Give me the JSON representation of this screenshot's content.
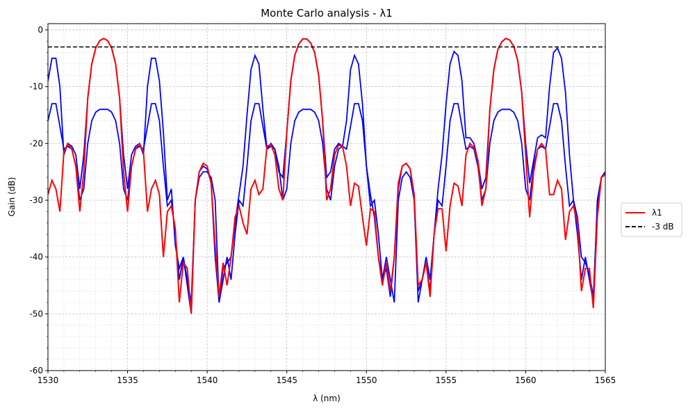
{
  "chart_data": {
    "type": "line",
    "title": "Monte Carlo analysis - λ1",
    "xlabel": "λ (nm)",
    "ylabel": "Gain (dB)",
    "x": [
      1530,
      1530.25,
      1530.5,
      1530.75,
      1531,
      1531.25,
      1531.5,
      1531.75,
      1532,
      1532.25,
      1532.5,
      1532.75,
      1533,
      1533.25,
      1533.5,
      1533.75,
      1534,
      1534.25,
      1534.5,
      1534.75,
      1535,
      1535.25,
      1535.5,
      1535.75,
      1536,
      1536.25,
      1536.5,
      1536.75,
      1537,
      1537.25,
      1537.5,
      1537.75,
      1538,
      1538.25,
      1538.5,
      1538.75,
      1539,
      1539.25,
      1539.5,
      1539.75,
      1540,
      1540.25,
      1540.5,
      1540.75,
      1541,
      1541.25,
      1541.5,
      1541.75,
      1542,
      1542.25,
      1542.5,
      1542.75,
      1543,
      1543.25,
      1543.5,
      1543.75,
      1544,
      1544.25,
      1544.5,
      1544.75,
      1545,
      1545.25,
      1545.5,
      1545.75,
      1546,
      1546.25,
      1546.5,
      1546.75,
      1547,
      1547.25,
      1547.5,
      1547.75,
      1548,
      1548.25,
      1548.5,
      1548.75,
      1549,
      1549.25,
      1549.5,
      1549.75,
      1550,
      1550.25,
      1550.5,
      1550.75,
      1551,
      1551.25,
      1551.5,
      1551.75,
      1552,
      1552.25,
      1552.5,
      1552.75,
      1553,
      1553.25,
      1553.5,
      1553.75,
      1554,
      1554.25,
      1554.5,
      1554.75,
      1555,
      1555.25,
      1555.5,
      1555.75,
      1556,
      1556.25,
      1556.5,
      1556.75,
      1557,
      1557.25,
      1557.5,
      1557.75,
      1558,
      1558.25,
      1558.5,
      1558.75,
      1559,
      1559.25,
      1559.5,
      1559.75,
      1560,
      1560.25,
      1560.5,
      1560.75,
      1561,
      1561.25,
      1561.5,
      1561.75,
      1562,
      1562.25,
      1562.5,
      1562.75,
      1563,
      1563.25,
      1563.5,
      1563.75,
      1564,
      1564.25,
      1564.5,
      1564.75,
      1565
    ],
    "series": [
      {
        "color": "#0000ff",
        "values": [
          -9,
          -5,
          -5,
          -10,
          -22,
          -20,
          -20.5,
          -22,
          -28,
          -22,
          -12,
          -6,
          -3.2,
          -1.9,
          -1.5,
          -1.9,
          -3.2,
          -6,
          -12,
          -22,
          -28,
          -22,
          -20.5,
          -20,
          -22,
          -10,
          -5,
          -5,
          -9,
          -18,
          -30,
          -28,
          -38,
          -42,
          -40,
          -45,
          -50,
          -30,
          -25,
          -24,
          -24.5,
          -27,
          -40,
          -48,
          -42,
          -41,
          -40,
          -34,
          -29,
          -24,
          -15,
          -7,
          -4.5,
          -6,
          -14,
          -21,
          -20,
          -21,
          -25,
          -26,
          -18,
          -9,
          -4.5,
          -2.5,
          -1.6,
          -1.6,
          -2.3,
          -4,
          -8,
          -16,
          -26,
          -25,
          -21,
          -20,
          -20.5,
          -16,
          -7,
          -4.5,
          -6,
          -13,
          -24,
          -29,
          -33,
          -40,
          -44,
          -42,
          -47,
          -40,
          -28,
          -24,
          -23.5,
          -24.5,
          -30,
          -46,
          -44,
          -41,
          -46,
          -36,
          -28,
          -22,
          -13,
          -6,
          -3.8,
          -4.5,
          -9,
          -19,
          -19,
          -20,
          -23,
          -28,
          -26,
          -14,
          -7,
          -3.5,
          -2.1,
          -1.5,
          -1.8,
          -2.9,
          -5.4,
          -11,
          -20,
          -27,
          -23,
          -19,
          -18.5,
          -19,
          -10,
          -4,
          -3.2,
          -5,
          -11,
          -22,
          -30,
          -33,
          -40,
          -41,
          -43,
          -47,
          -31,
          -26,
          -25
        ]
      },
      {
        "color": "#0000ff",
        "values": [
          -16,
          -13,
          -13,
          -17,
          -21,
          -20.5,
          -21,
          -24,
          -30,
          -28,
          -20,
          -16,
          -14.5,
          -14,
          -14,
          -14,
          -14.5,
          -16,
          -20,
          -28,
          -30,
          -24,
          -21,
          -20.5,
          -21,
          -17,
          -13,
          -13,
          -16,
          -24,
          -31,
          -30,
          -36,
          -44,
          -40,
          -44,
          -48,
          -30,
          -26,
          -25,
          -25,
          -26,
          -30,
          -48,
          -44,
          -40,
          -44,
          -36,
          -30,
          -31,
          -24,
          -16,
          -13,
          -13,
          -17,
          -21,
          -20.5,
          -21,
          -24,
          -30,
          -28,
          -20,
          -16,
          -14.5,
          -14,
          -14,
          -14,
          -14.5,
          -16,
          -20,
          -28,
          -30,
          -24,
          -21,
          -20.5,
          -21,
          -17,
          -13,
          -13,
          -16,
          -24,
          -31,
          -30,
          -36,
          -44,
          -40,
          -44,
          -48,
          -30,
          -26,
          -25,
          -26,
          -30,
          -48,
          -44,
          -40,
          -44,
          -36,
          -30,
          -31,
          -24,
          -16,
          -13,
          -13,
          -17,
          -21,
          -20.5,
          -21,
          -24,
          -30,
          -28,
          -20,
          -16,
          -14.5,
          -14,
          -14,
          -14,
          -14.5,
          -16,
          -20,
          -28,
          -30,
          -24,
          -21,
          -20.5,
          -21,
          -17,
          -13,
          -13,
          -16,
          -24,
          -31,
          -30,
          -36,
          -44,
          -40,
          -44,
          -48,
          -30,
          -26,
          -25
        ]
      },
      {
        "name": "λ1",
        "color": "#ff0000",
        "values": [
          -29,
          -26.5,
          -28,
          -32,
          -21.5,
          -20,
          -21,
          -24,
          -32,
          -25,
          -12,
          -6,
          -3.2,
          -1.9,
          -1.5,
          -1.9,
          -3.2,
          -6,
          -12,
          -25,
          -32,
          -24,
          -21,
          -20,
          -21.5,
          -32,
          -28,
          -26.5,
          -29,
          -40,
          -32,
          -31,
          -35,
          -48,
          -41,
          -42,
          -50,
          -30,
          -25,
          -23.5,
          -24,
          -27,
          -38,
          -47,
          -41,
          -45,
          -40,
          -33,
          -31,
          -34,
          -36,
          -28,
          -26.5,
          -29,
          -28,
          -20.5,
          -20.2,
          -22,
          -28,
          -30,
          -18,
          -9,
          -4.5,
          -2.5,
          -1.6,
          -1.6,
          -2.3,
          -4,
          -8,
          -16,
          -30,
          -28,
          -22,
          -20.3,
          -20.5,
          -24,
          -31,
          -27,
          -27.5,
          -33,
          -38,
          -31.5,
          -32,
          -40,
          -45,
          -41,
          -46,
          -40,
          -27,
          -24,
          -23.5,
          -24.5,
          -29,
          -45,
          -44,
          -41,
          -47,
          -36,
          -31.5,
          -31.5,
          -39,
          -31,
          -27,
          -27.5,
          -31,
          -22,
          -20,
          -20.7,
          -23,
          -31,
          -28,
          -14,
          -7,
          -3.5,
          -2.1,
          -1.5,
          -1.8,
          -2.9,
          -5.4,
          -11,
          -22,
          -33,
          -25,
          -21,
          -20,
          -21,
          -29,
          -29,
          -26.5,
          -28,
          -37,
          -32,
          -31,
          -34,
          -46,
          -42,
          -42,
          -49,
          -33,
          -26,
          -25.5
        ]
      }
    ],
    "hline": {
      "name": "-3 dB",
      "value": -3,
      "color": "#000000",
      "dashed": true
    },
    "xlim": [
      1530,
      1565
    ],
    "xticks": [
      1530,
      1535,
      1540,
      1545,
      1550,
      1555,
      1560,
      1565
    ],
    "ylim": [
      -60,
      1.1
    ],
    "yticks": [
      0,
      -10,
      -20,
      -30,
      -40,
      -50,
      -60
    ],
    "minor_xticks": [
      1531,
      1532,
      1533,
      1534,
      1536,
      1537,
      1538,
      1539,
      1541,
      1542,
      1543,
      1544,
      1546,
      1547,
      1548,
      1549,
      1551,
      1552,
      1553,
      1554,
      1556,
      1557,
      1558,
      1559,
      1561,
      1562,
      1563,
      1564
    ],
    "minor_yticks": [
      -2,
      -4,
      -6,
      -8,
      -12,
      -14,
      -16,
      -18,
      -22,
      -24,
      -26,
      -28,
      -32,
      -34,
      -36,
      -38,
      -42,
      -44,
      -46,
      -48,
      -52,
      -54,
      -56,
      -58
    ],
    "grid": true,
    "legend": "right"
  }
}
